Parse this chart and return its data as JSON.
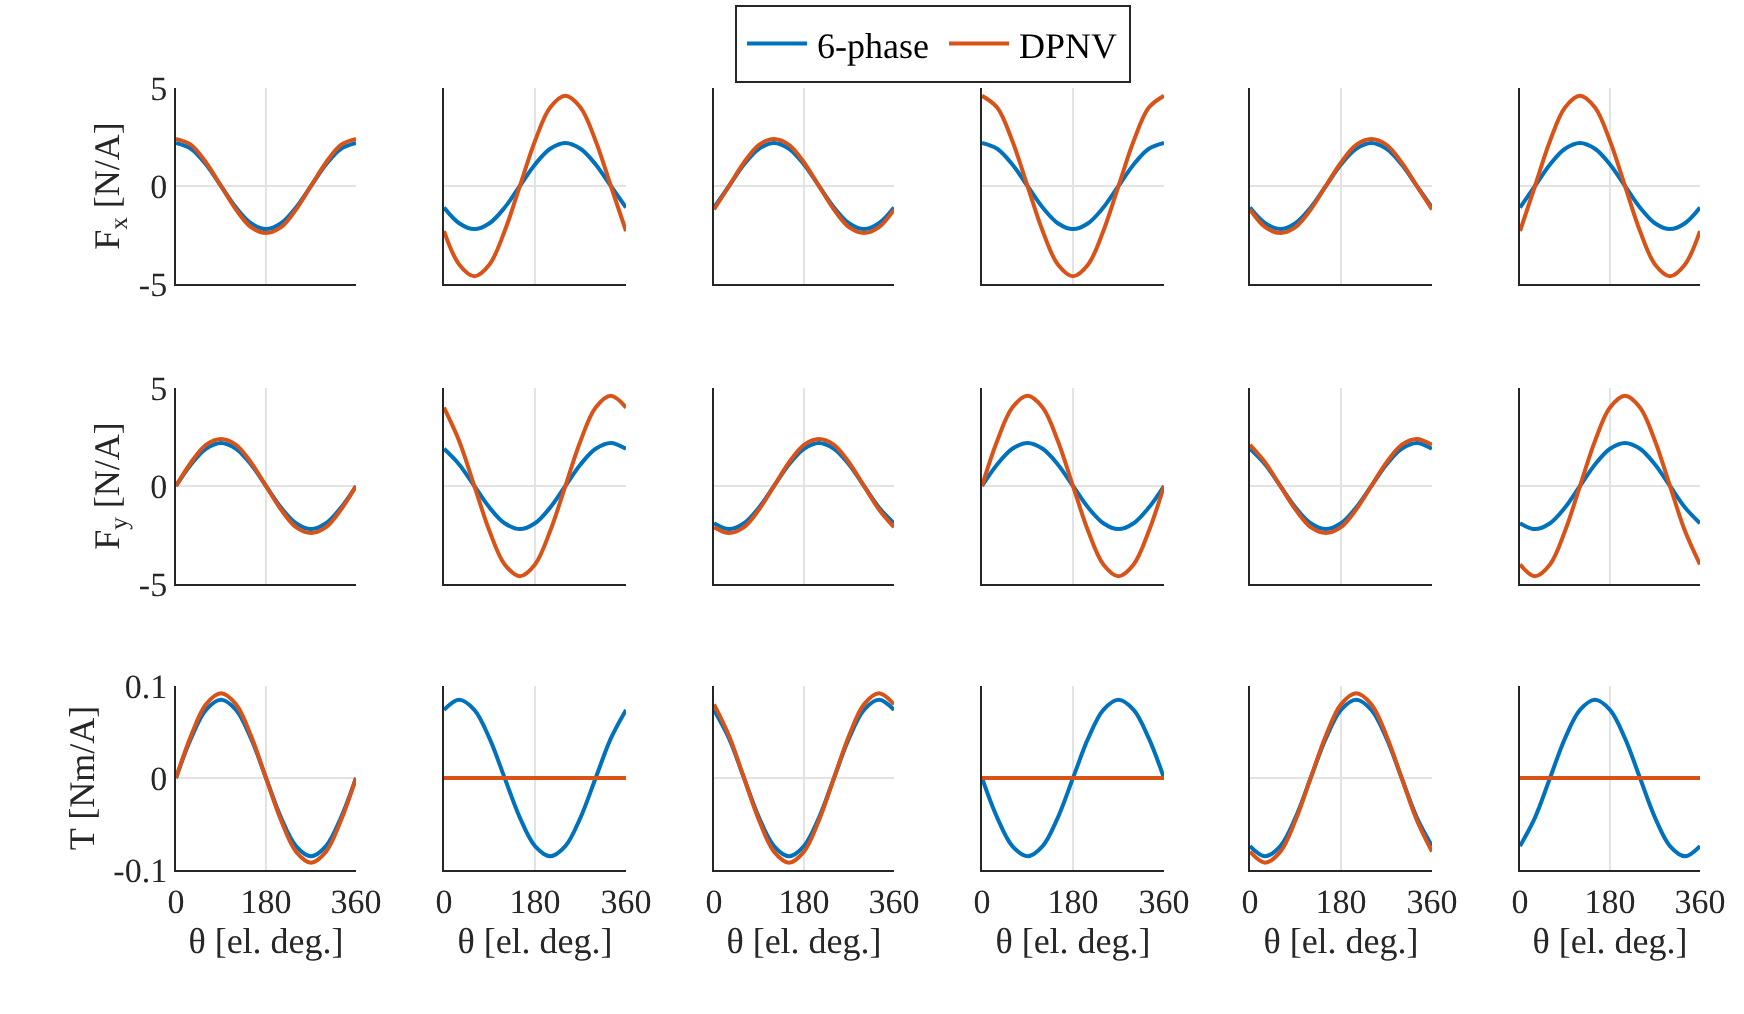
{
  "chart_data": [
    {
      "type": "line",
      "x": [
        0,
        30,
        60,
        90,
        120,
        150,
        180,
        210,
        240,
        270,
        300,
        330,
        360
      ],
      "xlim": [
        0,
        360
      ],
      "xticks": [
        0,
        180,
        360
      ],
      "ylim": [
        -5,
        5
      ],
      "yticks": [
        -5,
        0,
        5
      ],
      "ylabel": "F$_{x}$ [N/A]",
      "grid": true,
      "tick_labels": "y",
      "legend": "top",
      "series": [
        {
          "name": "6-phase",
          "color": "#0072bd",
          "values": [
            2.2,
            1.9,
            1.1,
            0,
            -1.1,
            -1.9,
            -2.2,
            -1.9,
            -1.1,
            0,
            1.1,
            1.9,
            2.2
          ]
        },
        {
          "name": "DPNV",
          "color": "#d95319",
          "values": [
            2.4,
            2.1,
            1.2,
            0,
            -1.2,
            -2.1,
            -2.4,
            -2.1,
            -1.2,
            0,
            1.2,
            2.1,
            2.4
          ]
        }
      ]
    },
    {
      "type": "line",
      "x": [
        0,
        30,
        60,
        90,
        120,
        150,
        180,
        210,
        240,
        270,
        300,
        330,
        360
      ],
      "xlim": [
        0,
        360
      ],
      "xticks": [
        0,
        180,
        360
      ],
      "ylim": [
        -5,
        5
      ],
      "yticks": [
        -5,
        0,
        5
      ],
      "grid": true,
      "tick_labels": false,
      "series": [
        {
          "color": "#0072bd",
          "values": [
            -1.1,
            -1.9,
            -2.2,
            -1.9,
            -1.1,
            0,
            1.1,
            1.9,
            2.2,
            1.9,
            1.1,
            0,
            -1.1
          ]
        },
        {
          "color": "#d95319",
          "values": [
            -2.3,
            -4,
            -4.6,
            -4,
            -2.3,
            0,
            2.3,
            4,
            4.6,
            4,
            2.3,
            0,
            -2.3
          ]
        }
      ]
    },
    {
      "type": "line",
      "x": [
        0,
        30,
        60,
        90,
        120,
        150,
        180,
        210,
        240,
        270,
        300,
        330,
        360
      ],
      "xlim": [
        0,
        360
      ],
      "xticks": [
        0,
        180,
        360
      ],
      "ylim": [
        -5,
        5
      ],
      "yticks": [
        -5,
        0,
        5
      ],
      "grid": true,
      "tick_labels": false,
      "series": [
        {
          "color": "#0072bd",
          "values": [
            -1.1,
            0,
            1.1,
            1.9,
            2.2,
            1.9,
            1.1,
            0,
            -1.1,
            -1.9,
            -2.2,
            -1.9,
            -1.1
          ]
        },
        {
          "color": "#d95319",
          "values": [
            -1.2,
            0,
            1.2,
            2.1,
            2.4,
            2.1,
            1.2,
            0,
            -1.2,
            -2.1,
            -2.4,
            -2.1,
            -1.2
          ]
        }
      ]
    },
    {
      "type": "line",
      "x": [
        0,
        30,
        60,
        90,
        120,
        150,
        180,
        210,
        240,
        270,
        300,
        330,
        360
      ],
      "xlim": [
        0,
        360
      ],
      "xticks": [
        0,
        180,
        360
      ],
      "ylim": [
        -5,
        5
      ],
      "yticks": [
        -5,
        0,
        5
      ],
      "grid": true,
      "tick_labels": false,
      "series": [
        {
          "color": "#0072bd",
          "values": [
            2.2,
            1.9,
            1.1,
            0,
            -1.1,
            -1.9,
            -2.2,
            -1.9,
            -1.1,
            0,
            1.1,
            1.9,
            2.2
          ]
        },
        {
          "color": "#d95319",
          "values": [
            4.6,
            4,
            2.3,
            0,
            -2.3,
            -4,
            -4.6,
            -4,
            -2.3,
            0,
            2.3,
            4,
            4.6
          ]
        }
      ]
    },
    {
      "type": "line",
      "x": [
        0,
        30,
        60,
        90,
        120,
        150,
        180,
        210,
        240,
        270,
        300,
        330,
        360
      ],
      "xlim": [
        0,
        360
      ],
      "xticks": [
        0,
        180,
        360
      ],
      "ylim": [
        -5,
        5
      ],
      "yticks": [
        -5,
        0,
        5
      ],
      "grid": true,
      "tick_labels": false,
      "series": [
        {
          "color": "#0072bd",
          "values": [
            -1.1,
            -1.9,
            -2.2,
            -1.9,
            -1.1,
            0,
            1.1,
            1.9,
            2.2,
            1.9,
            1.1,
            0,
            -1.1
          ]
        },
        {
          "color": "#d95319",
          "values": [
            -1.2,
            -2.1,
            -2.4,
            -2.1,
            -1.2,
            0,
            1.2,
            2.1,
            2.4,
            2.1,
            1.2,
            0,
            -1.2
          ]
        }
      ]
    },
    {
      "type": "line",
      "x": [
        0,
        30,
        60,
        90,
        120,
        150,
        180,
        210,
        240,
        270,
        300,
        330,
        360
      ],
      "xlim": [
        0,
        360
      ],
      "xticks": [
        0,
        180,
        360
      ],
      "ylim": [
        -5,
        5
      ],
      "yticks": [
        -5,
        0,
        5
      ],
      "grid": true,
      "tick_labels": false,
      "series": [
        {
          "color": "#0072bd",
          "values": [
            -1.1,
            0,
            1.1,
            1.9,
            2.2,
            1.9,
            1.1,
            0,
            -1.1,
            -1.9,
            -2.2,
            -1.9,
            -1.1
          ]
        },
        {
          "color": "#d95319",
          "values": [
            -2.3,
            0,
            2.3,
            4,
            4.6,
            4,
            2.3,
            0,
            -2.3,
            -4,
            -4.6,
            -4,
            -2.3
          ]
        }
      ]
    },
    {
      "type": "line",
      "x": [
        0,
        30,
        60,
        90,
        120,
        150,
        180,
        210,
        240,
        270,
        300,
        330,
        360
      ],
      "xlim": [
        0,
        360
      ],
      "xticks": [
        0,
        180,
        360
      ],
      "ylim": [
        -5,
        5
      ],
      "yticks": [
        -5,
        0,
        5
      ],
      "ylabel": "F$_{y}$ [N/A]",
      "grid": true,
      "tick_labels": "y",
      "series": [
        {
          "color": "#0072bd",
          "values": [
            0,
            1.1,
            1.9,
            2.2,
            1.9,
            1.1,
            0,
            -1.1,
            -1.9,
            -2.2,
            -1.9,
            -1.1,
            0
          ]
        },
        {
          "color": "#d95319",
          "values": [
            0,
            1.2,
            2.1,
            2.4,
            2.1,
            1.2,
            0,
            -1.2,
            -2.1,
            -2.4,
            -2.1,
            -1.2,
            0
          ]
        }
      ]
    },
    {
      "type": "line",
      "x": [
        0,
        30,
        60,
        90,
        120,
        150,
        180,
        210,
        240,
        270,
        300,
        330,
        360
      ],
      "xlim": [
        0,
        360
      ],
      "xticks": [
        0,
        180,
        360
      ],
      "ylim": [
        -5,
        5
      ],
      "yticks": [
        -5,
        0,
        5
      ],
      "grid": true,
      "tick_labels": false,
      "series": [
        {
          "color": "#0072bd",
          "values": [
            1.9,
            1.1,
            0,
            -1.1,
            -1.9,
            -2.2,
            -1.9,
            -1.1,
            0,
            1.1,
            1.9,
            2.2,
            1.9
          ]
        },
        {
          "color": "#d95319",
          "values": [
            4,
            2.3,
            0,
            -2.3,
            -4,
            -4.6,
            -4,
            -2.3,
            0,
            2.3,
            4,
            4.6,
            4
          ]
        }
      ]
    },
    {
      "type": "line",
      "x": [
        0,
        30,
        60,
        90,
        120,
        150,
        180,
        210,
        240,
        270,
        300,
        330,
        360
      ],
      "xlim": [
        0,
        360
      ],
      "xticks": [
        0,
        180,
        360
      ],
      "ylim": [
        -5,
        5
      ],
      "yticks": [
        -5,
        0,
        5
      ],
      "grid": true,
      "tick_labels": false,
      "series": [
        {
          "color": "#0072bd",
          "values": [
            -1.9,
            -2.2,
            -1.9,
            -1.1,
            0,
            1.1,
            1.9,
            2.2,
            1.9,
            1.1,
            0,
            -1.1,
            -1.9
          ]
        },
        {
          "color": "#d95319",
          "values": [
            -2.1,
            -2.4,
            -2.1,
            -1.2,
            0,
            1.2,
            2.1,
            2.4,
            2.1,
            1.2,
            0,
            -1.2,
            -2.1
          ]
        }
      ]
    },
    {
      "type": "line",
      "x": [
        0,
        30,
        60,
        90,
        120,
        150,
        180,
        210,
        240,
        270,
        300,
        330,
        360
      ],
      "xlim": [
        0,
        360
      ],
      "xticks": [
        0,
        180,
        360
      ],
      "ylim": [
        -5,
        5
      ],
      "yticks": [
        -5,
        0,
        5
      ],
      "grid": true,
      "tick_labels": false,
      "series": [
        {
          "color": "#0072bd",
          "values": [
            0,
            1.1,
            1.9,
            2.2,
            1.9,
            1.1,
            0,
            -1.1,
            -1.9,
            -2.2,
            -1.9,
            -1.1,
            0
          ]
        },
        {
          "color": "#d95319",
          "values": [
            0,
            2.3,
            4,
            4.6,
            4,
            2.3,
            0,
            -2.3,
            -4,
            -4.6,
            -4,
            -2.3,
            0
          ]
        }
      ]
    },
    {
      "type": "line",
      "x": [
        0,
        30,
        60,
        90,
        120,
        150,
        180,
        210,
        240,
        270,
        300,
        330,
        360
      ],
      "xlim": [
        0,
        360
      ],
      "xticks": [
        0,
        180,
        360
      ],
      "ylim": [
        -5,
        5
      ],
      "yticks": [
        -5,
        0,
        5
      ],
      "grid": true,
      "tick_labels": false,
      "series": [
        {
          "color": "#0072bd",
          "values": [
            1.9,
            1.1,
            0,
            -1.1,
            -1.9,
            -2.2,
            -1.9,
            -1.1,
            0,
            1.1,
            1.9,
            2.2,
            1.9
          ]
        },
        {
          "color": "#d95319",
          "values": [
            2.1,
            1.2,
            0,
            -1.2,
            -2.1,
            -2.4,
            -2.1,
            -1.2,
            0,
            1.2,
            2.1,
            2.4,
            2.1
          ]
        }
      ]
    },
    {
      "type": "line",
      "x": [
        0,
        30,
        60,
        90,
        120,
        150,
        180,
        210,
        240,
        270,
        300,
        330,
        360
      ],
      "xlim": [
        0,
        360
      ],
      "xticks": [
        0,
        180,
        360
      ],
      "ylim": [
        -5,
        5
      ],
      "yticks": [
        -5,
        0,
        5
      ],
      "grid": true,
      "tick_labels": false,
      "series": [
        {
          "color": "#0072bd",
          "values": [
            -1.9,
            -2.2,
            -1.9,
            -1.1,
            0,
            1.1,
            1.9,
            2.2,
            1.9,
            1.1,
            0,
            -1.1,
            -1.9
          ]
        },
        {
          "color": "#d95319",
          "values": [
            -4,
            -4.6,
            -4,
            -2.3,
            0,
            2.3,
            4,
            4.6,
            4,
            2.3,
            0,
            -2.3,
            -4
          ]
        }
      ]
    },
    {
      "type": "line",
      "x": [
        0,
        30,
        60,
        90,
        120,
        150,
        180,
        210,
        240,
        270,
        300,
        330,
        360
      ],
      "xlim": [
        0,
        360
      ],
      "xticks": [
        0,
        180,
        360
      ],
      "ylim": [
        -0.1,
        0.1
      ],
      "yticks": [
        -0.1,
        0,
        0.1
      ],
      "xlabel": "θ [el. deg.]",
      "ylabel": "T [Nm/A]",
      "grid": true,
      "series": [
        {
          "color": "#0072bd",
          "values": [
            0,
            0.043,
            0.074,
            0.085,
            0.074,
            0.043,
            0,
            -0.043,
            -0.074,
            -0.085,
            -0.074,
            -0.043,
            0
          ]
        },
        {
          "color": "#d95319",
          "values": [
            0,
            0.046,
            0.08,
            0.092,
            0.08,
            0.046,
            0,
            -0.046,
            -0.08,
            -0.092,
            -0.08,
            -0.046,
            0
          ]
        }
      ]
    },
    {
      "type": "line",
      "x": [
        0,
        30,
        60,
        90,
        120,
        150,
        180,
        210,
        240,
        270,
        300,
        330,
        360
      ],
      "xlim": [
        0,
        360
      ],
      "xticks": [
        0,
        180,
        360
      ],
      "ylim": [
        -0.1,
        0.1
      ],
      "yticks": [
        -0.1,
        0,
        0.1
      ],
      "xlabel": "θ [el. deg.]",
      "grid": true,
      "tick_labels": "x",
      "series": [
        {
          "color": "#0072bd",
          "values": [
            0.074,
            0.085,
            0.074,
            0.043,
            0,
            -0.043,
            -0.074,
            -0.085,
            -0.074,
            -0.043,
            0,
            0.043,
            0.074
          ]
        },
        {
          "color": "#d95319",
          "values": [
            0,
            0,
            0,
            0,
            0,
            0,
            0,
            0,
            0,
            0,
            0,
            0,
            0
          ]
        }
      ]
    },
    {
      "type": "line",
      "x": [
        0,
        30,
        60,
        90,
        120,
        150,
        180,
        210,
        240,
        270,
        300,
        330,
        360
      ],
      "xlim": [
        0,
        360
      ],
      "xticks": [
        0,
        180,
        360
      ],
      "ylim": [
        -0.1,
        0.1
      ],
      "yticks": [
        -0.1,
        0,
        0.1
      ],
      "xlabel": "θ [el. deg.]",
      "grid": true,
      "tick_labels": "x",
      "series": [
        {
          "color": "#0072bd",
          "values": [
            0.074,
            0.043,
            0,
            -0.043,
            -0.074,
            -0.085,
            -0.074,
            -0.043,
            0,
            0.043,
            0.074,
            0.085,
            0.074
          ]
        },
        {
          "color": "#d95319",
          "values": [
            0.08,
            0.046,
            0,
            -0.046,
            -0.08,
            -0.092,
            -0.08,
            -0.046,
            0,
            0.046,
            0.08,
            0.092,
            0.08
          ]
        }
      ]
    },
    {
      "type": "line",
      "x": [
        0,
        30,
        60,
        90,
        120,
        150,
        180,
        210,
        240,
        270,
        300,
        330,
        360
      ],
      "xlim": [
        0,
        360
      ],
      "xticks": [
        0,
        180,
        360
      ],
      "ylim": [
        -0.1,
        0.1
      ],
      "yticks": [
        -0.1,
        0,
        0.1
      ],
      "xlabel": "θ [el. deg.]",
      "grid": true,
      "tick_labels": "x",
      "series": [
        {
          "color": "#0072bd",
          "values": [
            0,
            -0.043,
            -0.074,
            -0.085,
            -0.074,
            -0.043,
            0,
            0.043,
            0.074,
            0.085,
            0.074,
            0.043,
            0
          ]
        },
        {
          "color": "#d95319",
          "values": [
            0,
            0,
            0,
            0,
            0,
            0,
            0,
            0,
            0,
            0,
            0,
            0,
            0
          ]
        }
      ]
    },
    {
      "type": "line",
      "x": [
        0,
        30,
        60,
        90,
        120,
        150,
        180,
        210,
        240,
        270,
        300,
        330,
        360
      ],
      "xlim": [
        0,
        360
      ],
      "xticks": [
        0,
        180,
        360
      ],
      "ylim": [
        -0.1,
        0.1
      ],
      "yticks": [
        -0.1,
        0,
        0.1
      ],
      "xlabel": "θ [el. deg.]",
      "grid": true,
      "tick_labels": "x",
      "series": [
        {
          "color": "#0072bd",
          "values": [
            -0.074,
            -0.085,
            -0.074,
            -0.043,
            0,
            0.043,
            0.074,
            0.085,
            0.074,
            0.043,
            0,
            -0.043,
            -0.074
          ]
        },
        {
          "color": "#d95319",
          "values": [
            -0.08,
            -0.092,
            -0.08,
            -0.046,
            0,
            0.046,
            0.08,
            0.092,
            0.08,
            0.046,
            0,
            -0.046,
            -0.08
          ]
        }
      ]
    },
    {
      "type": "line",
      "x": [
        0,
        30,
        60,
        90,
        120,
        150,
        180,
        210,
        240,
        270,
        300,
        330,
        360
      ],
      "xlim": [
        0,
        360
      ],
      "xticks": [
        0,
        180,
        360
      ],
      "ylim": [
        -0.1,
        0.1
      ],
      "yticks": [
        -0.1,
        0,
        0.1
      ],
      "xlabel": "θ [el. deg.]",
      "grid": true,
      "tick_labels": "x",
      "series": [
        {
          "color": "#0072bd",
          "values": [
            -0.074,
            -0.043,
            0,
            0.043,
            0.074,
            0.085,
            0.074,
            0.043,
            0,
            -0.043,
            -0.074,
            -0.085,
            -0.074
          ]
        },
        {
          "color": "#d95319",
          "values": [
            0,
            0,
            0,
            0,
            0,
            0,
            0,
            0,
            0,
            0,
            0,
            0,
            0
          ]
        }
      ]
    }
  ]
}
